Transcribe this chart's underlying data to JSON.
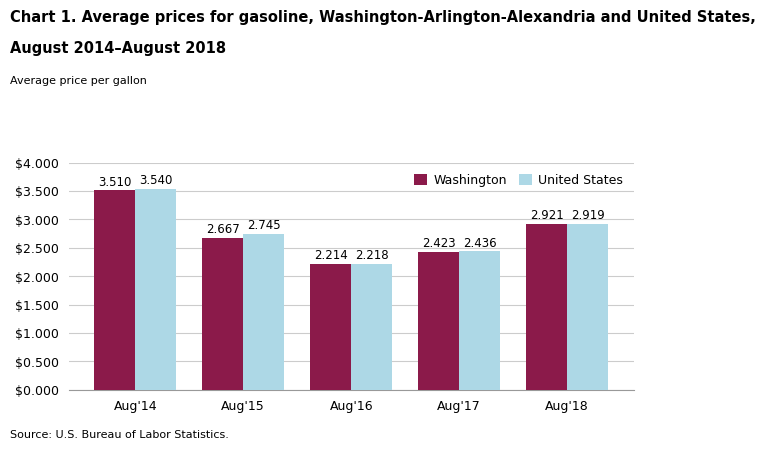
{
  "title_line1": "Chart 1. Average prices for gasoline, Washington-Arlington-Alexandria and United States,",
  "title_line2": "August 2014–August 2018",
  "ylabel": "Average price per gallon",
  "source": "Source: U.S. Bureau of Labor Statistics.",
  "categories": [
    "Aug'14",
    "Aug'15",
    "Aug'16",
    "Aug'17",
    "Aug'18"
  ],
  "washington": [
    3.51,
    2.667,
    2.214,
    2.423,
    2.921
  ],
  "us": [
    3.54,
    2.745,
    2.218,
    2.436,
    2.919
  ],
  "washington_color": "#8B1A4A",
  "us_color": "#ADD8E6",
  "bar_width": 0.38,
  "ylim": [
    0,
    4.0
  ],
  "yticks": [
    0.0,
    0.5,
    1.0,
    1.5,
    2.0,
    2.5,
    3.0,
    3.5,
    4.0
  ],
  "legend_labels": [
    "Washington",
    "United States"
  ],
  "title_fontsize": 10.5,
  "ylabel_fontsize": 8,
  "tick_fontsize": 9,
  "source_fontsize": 8,
  "annot_fontsize": 8.5,
  "background_color": "#ffffff",
  "grid_color": "#cccccc"
}
